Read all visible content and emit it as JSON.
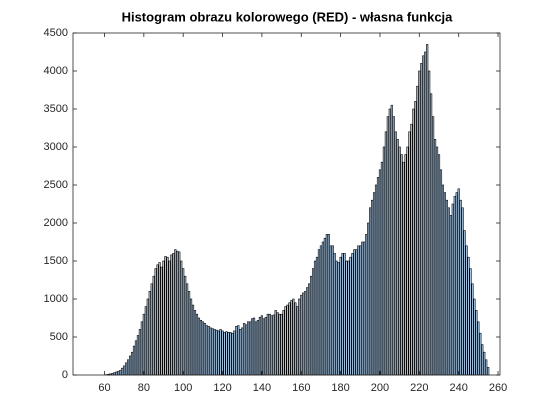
{
  "chart_data": {
    "type": "bar",
    "title": "Histogram obrazu kolorowego (RED) - własna funkcja",
    "color": "#a9c9e8",
    "x": [
      60,
      61,
      62,
      63,
      64,
      65,
      66,
      67,
      68,
      69,
      70,
      71,
      72,
      73,
      74,
      75,
      76,
      77,
      78,
      79,
      80,
      81,
      82,
      83,
      84,
      85,
      86,
      87,
      88,
      89,
      90,
      91,
      92,
      93,
      94,
      95,
      96,
      97,
      98,
      99,
      100,
      101,
      102,
      103,
      104,
      105,
      106,
      107,
      108,
      109,
      110,
      111,
      112,
      113,
      114,
      115,
      116,
      117,
      118,
      119,
      120,
      121,
      122,
      123,
      124,
      125,
      126,
      127,
      128,
      129,
      130,
      131,
      132,
      133,
      134,
      135,
      136,
      137,
      138,
      139,
      140,
      141,
      142,
      143,
      144,
      145,
      146,
      147,
      148,
      149,
      150,
      151,
      152,
      153,
      154,
      155,
      156,
      157,
      158,
      159,
      160,
      161,
      162,
      163,
      164,
      165,
      166,
      167,
      168,
      169,
      170,
      171,
      172,
      173,
      174,
      175,
      176,
      177,
      178,
      179,
      180,
      181,
      182,
      183,
      184,
      185,
      186,
      187,
      188,
      189,
      190,
      191,
      192,
      193,
      194,
      195,
      196,
      197,
      198,
      199,
      200,
      201,
      202,
      203,
      204,
      205,
      206,
      207,
      208,
      209,
      210,
      211,
      212,
      213,
      214,
      215,
      216,
      217,
      218,
      219,
      220,
      221,
      222,
      223,
      224,
      225,
      226,
      227,
      228,
      229,
      230,
      231,
      232,
      233,
      234,
      235,
      236,
      237,
      238,
      239,
      240,
      241,
      242,
      243,
      244,
      245,
      246,
      247,
      248,
      249,
      250,
      251,
      252,
      253,
      254,
      255
    ],
    "values": [
      0,
      5,
      10,
      15,
      20,
      30,
      40,
      50,
      60,
      90,
      120,
      160,
      200,
      250,
      300,
      380,
      450,
      520,
      600,
      700,
      800,
      900,
      1000,
      1100,
      1200,
      1300,
      1400,
      1450,
      1480,
      1420,
      1500,
      1560,
      1550,
      1500,
      1580,
      1600,
      1650,
      1630,
      1620,
      1500,
      1400,
      1300,
      1200,
      1100,
      1000,
      920,
      850,
      800,
      750,
      720,
      700,
      680,
      650,
      640,
      620,
      610,
      600,
      590,
      580,
      600,
      580,
      560,
      570,
      560,
      560,
      550,
      580,
      640,
      650,
      600,
      620,
      680,
      660,
      700,
      700,
      740,
      750,
      700,
      720,
      760,
      780,
      740,
      760,
      800,
      800,
      780,
      790,
      850,
      820,
      800,
      800,
      850,
      900,
      920,
      950,
      980,
      1000,
      950,
      900,
      1000,
      1050,
      1080,
      1100,
      1150,
      1200,
      1300,
      1400,
      1500,
      1550,
      1650,
      1700,
      1750,
      1800,
      1850,
      1850,
      1700,
      1700,
      1600,
      1500,
      1480,
      1550,
      1600,
      1600,
      1500,
      1500,
      1550,
      1600,
      1650,
      1650,
      1700,
      1700,
      1750,
      1750,
      1850,
      2000,
      2200,
      2300,
      2400,
      2500,
      2600,
      2700,
      2800,
      3000,
      3200,
      3400,
      3500,
      3550,
      3400,
      3200,
      3100,
      3000,
      2900,
      2800,
      2900,
      3000,
      3200,
      3300,
      3500,
      3600,
      3800,
      4000,
      4100,
      4200,
      4250,
      4350,
      4000,
      3700,
      3400,
      3100,
      3000,
      2900,
      2700,
      2500,
      2400,
      2300,
      2200,
      2100,
      2250,
      2350,
      2400,
      2450,
      2300,
      2200,
      1900,
      1700,
      1550,
      1400,
      1200,
      1000,
      850,
      700,
      550,
      400,
      300,
      200,
      100
    ],
    "xlim": [
      44,
      261
    ],
    "xticks": [
      60,
      80,
      100,
      120,
      140,
      160,
      180,
      200,
      220,
      240,
      260
    ],
    "ylim": [
      0,
      4500
    ],
    "yticks": [
      0,
      500,
      1000,
      1500,
      2000,
      2500,
      3000,
      3500,
      4000,
      4500
    ]
  }
}
